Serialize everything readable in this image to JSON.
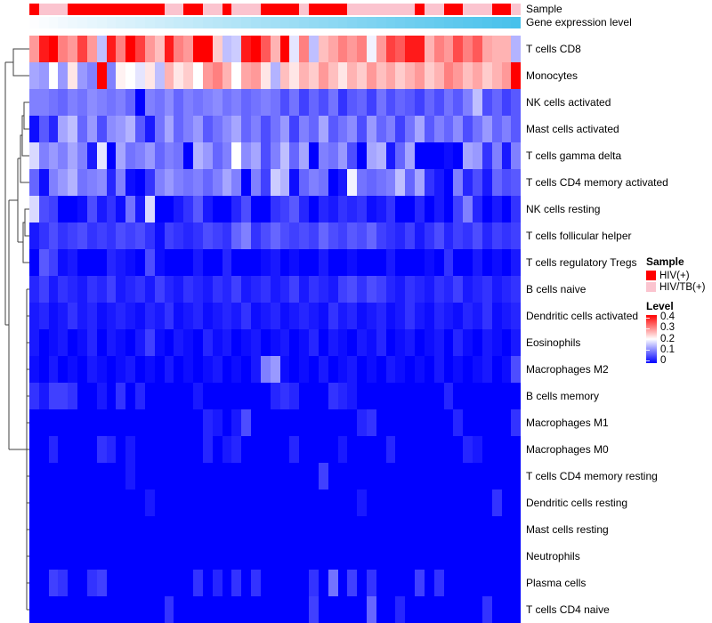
{
  "annotations": {
    "sample_label": "Sample",
    "gene_label": "Gene expression level",
    "sample_groups": "RPPPRRRRRRRRRRPPRRPPRPPPRRRRPRRRRPPPPPPPRPPRRPPPRRP",
    "sample_color_map": {
      "R": "#FF0000",
      "P": "#FBC4CF"
    },
    "gene_gradient": {
      "from": "#FDFDFF",
      "to": "#47C1EB",
      "direction": "low-left to high-right"
    }
  },
  "legend": {
    "sample": {
      "title": "Sample",
      "items": [
        {
          "label": "HIV(+)",
          "color": "#FF0000"
        },
        {
          "label": "HIV/TB(+)",
          "color": "#FBC4CF"
        }
      ]
    },
    "level": {
      "title": "Level",
      "ticks": [
        "0.4",
        "0.3",
        "0.2",
        "0.1",
        "0"
      ]
    }
  },
  "chart_data": {
    "type": "heatmap",
    "title": "",
    "n_cols": 51,
    "column_labels_shown": false,
    "row_dendrogram": true,
    "color_scale": {
      "min": 0,
      "mid": 0.2,
      "max": 0.4,
      "min_color": "#0000FF",
      "mid_color": "#FFFFFF",
      "max_color": "#FF0000"
    },
    "column_annotations": [
      "Sample",
      "Gene expression level"
    ],
    "rows": [
      "T cells CD8",
      "Monocytes",
      "NK cells activated",
      "Mast cells activated",
      "T cells gamma delta",
      "T cells CD4 memory activated",
      "NK cells resting",
      "T cells follicular helper",
      "T cells regulatory  Tregs",
      "B cells naive",
      "Dendritic cells activated",
      "Eosinophils",
      "Macrophages M2",
      "B cells memory",
      "Macrophages M1",
      "Macrophages M0",
      "T cells CD4 memory resting",
      "Dendritic cells resting",
      "Mast cells resting",
      "Neutrophils",
      "Plasma cells",
      "T cells CD4 naive"
    ],
    "values": [
      [
        0.28,
        0.38,
        0.4,
        0.3,
        0.28,
        0.35,
        0.28,
        0.15,
        0.38,
        0.3,
        0.4,
        0.35,
        0.28,
        0.25,
        0.38,
        0.3,
        0.28,
        0.4,
        0.4,
        0.24,
        0.15,
        0.16,
        0.38,
        0.4,
        0.33,
        0.26,
        0.4,
        0.18,
        0.3,
        0.15,
        0.25,
        0.27,
        0.3,
        0.28,
        0.3,
        0.19,
        0.28,
        0.35,
        0.33,
        0.38,
        0.38,
        0.26,
        0.3,
        0.28,
        0.34,
        0.3,
        0.33,
        0.27,
        0.26,
        0.26,
        0.14
      ],
      [
        0.13,
        0.12,
        0.2,
        0.12,
        0.22,
        0.12,
        0.1,
        0.4,
        0.1,
        0.21,
        0.2,
        0.18,
        0.22,
        0.15,
        0.26,
        0.22,
        0.24,
        0.2,
        0.28,
        0.3,
        0.26,
        0.2,
        0.27,
        0.28,
        0.22,
        0.14,
        0.25,
        0.22,
        0.26,
        0.24,
        0.28,
        0.25,
        0.22,
        0.26,
        0.24,
        0.28,
        0.25,
        0.27,
        0.24,
        0.26,
        0.28,
        0.24,
        0.26,
        0.3,
        0.28,
        0.25,
        0.27,
        0.24,
        0.26,
        0.28,
        0.4
      ],
      [
        0.1,
        0.1,
        0.09,
        0.08,
        0.1,
        0.09,
        0.11,
        0.1,
        0.09,
        0.1,
        0.08,
        0.0,
        0.1,
        0.09,
        0.11,
        0.08,
        0.1,
        0.09,
        0.1,
        0.11,
        0.09,
        0.1,
        0.08,
        0.09,
        0.1,
        0.09,
        0.06,
        0.09,
        0.05,
        0.08,
        0.06,
        0.09,
        0.04,
        0.07,
        0.08,
        0.05,
        0.09,
        0.06,
        0.08,
        0.07,
        0.05,
        0.08,
        0.06,
        0.09,
        0.07,
        0.1,
        0.15,
        0.06,
        0.08,
        0.05,
        0.07
      ],
      [
        0.01,
        0.07,
        0.03,
        0.13,
        0.15,
        0.08,
        0.12,
        0.06,
        0.11,
        0.12,
        0.14,
        0.07,
        0.02,
        0.09,
        0.13,
        0.08,
        0.1,
        0.12,
        0.07,
        0.09,
        0.11,
        0.13,
        0.08,
        0.1,
        0.06,
        0.09,
        0.12,
        0.05,
        0.1,
        0.08,
        0.13,
        0.07,
        0.09,
        0.11,
        0.06,
        0.12,
        0.08,
        0.1,
        0.05,
        0.09,
        0.13,
        0.07,
        0.1,
        0.08,
        0.11,
        0.06,
        0.09,
        0.12,
        0.08,
        0.1,
        0.07
      ],
      [
        0.17,
        0.1,
        0.12,
        0.1,
        0.13,
        0.1,
        0.02,
        0.18,
        0.0,
        0.13,
        0.09,
        0.1,
        0.12,
        0.08,
        0.1,
        0.09,
        0.0,
        0.14,
        0.12,
        0.08,
        0.1,
        0.2,
        0.11,
        0.13,
        0.06,
        0.1,
        0.15,
        0.08,
        0.13,
        0.0,
        0.1,
        0.09,
        0.12,
        0.06,
        0.0,
        0.13,
        0.14,
        0.02,
        0.08,
        0.13,
        0.0,
        0.0,
        0.0,
        0.01,
        0.0,
        0.13,
        0.12,
        0.04,
        0.1,
        0.02,
        0.1
      ],
      [
        0.08,
        0.01,
        0.1,
        0.12,
        0.14,
        0.09,
        0.1,
        0.11,
        0.03,
        0.1,
        0.01,
        0.0,
        0.04,
        0.1,
        0.12,
        0.1,
        0.09,
        0.1,
        0.08,
        0.1,
        0.13,
        0.1,
        0.0,
        0.1,
        0.05,
        0.16,
        0.14,
        0.01,
        0.08,
        0.1,
        0.09,
        0.0,
        0.02,
        0.19,
        0.09,
        0.08,
        0.09,
        0.1,
        0.15,
        0.08,
        0.13,
        0.04,
        0.02,
        0.0,
        0.1,
        0.03,
        0.06,
        0.02,
        0.08,
        0.06,
        0.07
      ],
      [
        0.17,
        0.06,
        0.05,
        0.0,
        0.0,
        0.01,
        0.06,
        0.02,
        0.04,
        0.01,
        0.09,
        0.02,
        0.17,
        0.0,
        0.0,
        0.02,
        0.04,
        0.07,
        0.02,
        0.0,
        0.0,
        0.03,
        0.06,
        0.0,
        0.0,
        0.04,
        0.05,
        0.07,
        0.03,
        0.0,
        0.03,
        0.02,
        0.04,
        0.03,
        0.04,
        0.01,
        0.02,
        0.04,
        0.0,
        0.0,
        0.03,
        0.0,
        0.02,
        0.0,
        0.05,
        0.1,
        0.03,
        0.0,
        0.02,
        0.0,
        0.04
      ],
      [
        0.02,
        0.04,
        0.06,
        0.04,
        0.05,
        0.06,
        0.04,
        0.05,
        0.04,
        0.06,
        0.05,
        0.06,
        0.04,
        0.01,
        0.05,
        0.04,
        0.03,
        0.04,
        0.06,
        0.05,
        0.04,
        0.08,
        0.1,
        0.04,
        0.06,
        0.08,
        0.06,
        0.05,
        0.06,
        0.05,
        0.08,
        0.06,
        0.05,
        0.07,
        0.06,
        0.08,
        0.05,
        0.04,
        0.03,
        0.05,
        0.02,
        0.04,
        0.06,
        0.03,
        0.05,
        0.04,
        0.06,
        0.03,
        0.05,
        0.04,
        0.05
      ],
      [
        0.0,
        0.07,
        0.05,
        0.01,
        0.02,
        0.0,
        0.0,
        0.0,
        0.03,
        0.02,
        0.01,
        0.0,
        0.06,
        0.01,
        0.0,
        0.0,
        0.0,
        0.02,
        0.0,
        0.0,
        0.03,
        0.0,
        0.0,
        0.0,
        0.01,
        0.02,
        0.0,
        0.01,
        0.0,
        0.0,
        0.02,
        0.0,
        0.0,
        0.01,
        0.0,
        0.0,
        0.0,
        0.02,
        0.0,
        0.0,
        0.0,
        0.01,
        0.0,
        0.04,
        0.0,
        0.0,
        0.02,
        0.0,
        0.01,
        0.0,
        0.02
      ],
      [
        0.03,
        0.05,
        0.02,
        0.04,
        0.03,
        0.02,
        0.04,
        0.03,
        0.05,
        0.02,
        0.03,
        0.04,
        0.02,
        0.05,
        0.03,
        0.02,
        0.04,
        0.03,
        0.02,
        0.04,
        0.03,
        0.05,
        0.02,
        0.03,
        0.04,
        0.02,
        0.03,
        0.05,
        0.02,
        0.04,
        0.03,
        0.02,
        0.05,
        0.06,
        0.04,
        0.06,
        0.05,
        0.03,
        0.02,
        0.04,
        0.03,
        0.02,
        0.04,
        0.03,
        0.05,
        0.02,
        0.03,
        0.04,
        0.02,
        0.03,
        0.04
      ],
      [
        0.02,
        0.03,
        0.01,
        0.02,
        0.04,
        0.02,
        0.03,
        0.01,
        0.02,
        0.03,
        0.02,
        0.01,
        0.03,
        0.02,
        0.04,
        0.01,
        0.02,
        0.03,
        0.01,
        0.02,
        0.03,
        0.02,
        0.04,
        0.01,
        0.02,
        0.03,
        0.01,
        0.02,
        0.03,
        0.02,
        0.01,
        0.04,
        0.02,
        0.03,
        0.01,
        0.02,
        0.03,
        0.01,
        0.02,
        0.04,
        0.02,
        0.01,
        0.03,
        0.02,
        0.01,
        0.03,
        0.02,
        0.04,
        0.01,
        0.02,
        0.03
      ],
      [
        0.02,
        0.0,
        0.01,
        0.02,
        0.0,
        0.01,
        0.03,
        0.0,
        0.02,
        0.01,
        0.0,
        0.02,
        0.05,
        0.01,
        0.0,
        0.02,
        0.01,
        0.0,
        0.03,
        0.01,
        0.02,
        0.0,
        0.01,
        0.02,
        0.0,
        0.01,
        0.02,
        0.0,
        0.01,
        0.03,
        0.0,
        0.02,
        0.01,
        0.0,
        0.02,
        0.01,
        0.03,
        0.0,
        0.01,
        0.02,
        0.0,
        0.01,
        0.02,
        0.0,
        0.03,
        0.01,
        0.0,
        0.02,
        0.01,
        0.0,
        0.02
      ],
      [
        0.01,
        0.0,
        0.02,
        0.0,
        0.01,
        0.0,
        0.02,
        0.01,
        0.0,
        0.01,
        0.02,
        0.0,
        0.01,
        0.0,
        0.02,
        0.0,
        0.01,
        0.0,
        0.01,
        0.02,
        0.0,
        0.01,
        0.0,
        0.02,
        0.1,
        0.12,
        0.01,
        0.0,
        0.01,
        0.0,
        0.02,
        0.0,
        0.01,
        0.02,
        0.0,
        0.01,
        0.0,
        0.02,
        0.01,
        0.0,
        0.01,
        0.0,
        0.02,
        0.0,
        0.01,
        0.0,
        0.01,
        0.02,
        0.0,
        0.01,
        0.06
      ],
      [
        0.04,
        0.02,
        0.05,
        0.05,
        0.04,
        0.0,
        0.0,
        0.02,
        0.0,
        0.04,
        0.0,
        0.03,
        0.0,
        0.0,
        0.0,
        0.0,
        0.0,
        0.02,
        0.0,
        0.0,
        0.0,
        0.0,
        0.0,
        0.0,
        0.0,
        0.03,
        0.04,
        0.03,
        0.0,
        0.0,
        0.0,
        0.04,
        0.03,
        0.02,
        0.0,
        0.0,
        0.0,
        0.0,
        0.0,
        0.0,
        0.0,
        0.0,
        0.0,
        0.03,
        0.0,
        0.0,
        0.0,
        0.0,
        0.0,
        0.0,
        0.0
      ],
      [
        0.0,
        0.0,
        0.0,
        0.0,
        0.0,
        0.0,
        0.0,
        0.0,
        0.0,
        0.0,
        0.0,
        0.0,
        0.0,
        0.0,
        0.0,
        0.0,
        0.0,
        0.0,
        0.03,
        0.02,
        0.0,
        0.02,
        0.06,
        0.0,
        0.0,
        0.0,
        0.0,
        0.0,
        0.0,
        0.0,
        0.0,
        0.0,
        0.0,
        0.0,
        0.03,
        0.04,
        0.0,
        0.0,
        0.0,
        0.0,
        0.0,
        0.0,
        0.0,
        0.0,
        0.03,
        0.0,
        0.0,
        0.0,
        0.0,
        0.0,
        0.04
      ],
      [
        0.0,
        0.0,
        0.03,
        0.0,
        0.0,
        0.0,
        0.0,
        0.04,
        0.03,
        0.0,
        0.02,
        0.0,
        0.0,
        0.0,
        0.0,
        0.0,
        0.0,
        0.0,
        0.03,
        0.0,
        0.02,
        0.03,
        0.0,
        0.0,
        0.0,
        0.0,
        0.0,
        0.03,
        0.0,
        0.0,
        0.0,
        0.0,
        0.02,
        0.0,
        0.0,
        0.0,
        0.0,
        0.03,
        0.0,
        0.0,
        0.0,
        0.0,
        0.0,
        0.0,
        0.0,
        0.03,
        0.02,
        0.0,
        0.0,
        0.0,
        0.0
      ],
      [
        0.0,
        0.0,
        0.0,
        0.0,
        0.0,
        0.0,
        0.0,
        0.0,
        0.0,
        0.0,
        0.02,
        0.0,
        0.0,
        0.0,
        0.0,
        0.0,
        0.0,
        0.0,
        0.0,
        0.0,
        0.0,
        0.0,
        0.0,
        0.0,
        0.0,
        0.0,
        0.0,
        0.0,
        0.0,
        0.0,
        0.05,
        0.0,
        0.0,
        0.0,
        0.0,
        0.0,
        0.0,
        0.0,
        0.0,
        0.0,
        0.0,
        0.0,
        0.0,
        0.0,
        0.0,
        0.0,
        0.0,
        0.0,
        0.0,
        0.0,
        0.0
      ],
      [
        0.0,
        0.0,
        0.0,
        0.0,
        0.0,
        0.0,
        0.0,
        0.0,
        0.0,
        0.0,
        0.0,
        0.0,
        0.02,
        0.0,
        0.0,
        0.0,
        0.0,
        0.0,
        0.0,
        0.0,
        0.0,
        0.0,
        0.0,
        0.0,
        0.0,
        0.0,
        0.0,
        0.0,
        0.0,
        0.0,
        0.0,
        0.0,
        0.0,
        0.0,
        0.02,
        0.0,
        0.0,
        0.0,
        0.0,
        0.0,
        0.0,
        0.0,
        0.0,
        0.0,
        0.0,
        0.0,
        0.0,
        0.0,
        0.04,
        0.0,
        0.0
      ],
      [
        0.0,
        0.0,
        0.0,
        0.0,
        0.0,
        0.0,
        0.0,
        0.0,
        0.0,
        0.0,
        0.0,
        0.0,
        0.0,
        0.0,
        0.0,
        0.0,
        0.0,
        0.0,
        0.0,
        0.0,
        0.0,
        0.0,
        0.0,
        0.0,
        0.0,
        0.0,
        0.0,
        0.0,
        0.0,
        0.0,
        0.0,
        0.0,
        0.0,
        0.0,
        0.0,
        0.0,
        0.0,
        0.0,
        0.0,
        0.0,
        0.0,
        0.0,
        0.0,
        0.0,
        0.0,
        0.0,
        0.0,
        0.0,
        0.0,
        0.0,
        0.0
      ],
      [
        0.0,
        0.0,
        0.0,
        0.0,
        0.0,
        0.0,
        0.0,
        0.0,
        0.0,
        0.0,
        0.0,
        0.0,
        0.0,
        0.0,
        0.0,
        0.0,
        0.0,
        0.0,
        0.0,
        0.0,
        0.0,
        0.0,
        0.0,
        0.0,
        0.0,
        0.0,
        0.0,
        0.0,
        0.0,
        0.0,
        0.0,
        0.0,
        0.0,
        0.0,
        0.0,
        0.0,
        0.0,
        0.0,
        0.0,
        0.0,
        0.0,
        0.0,
        0.0,
        0.0,
        0.0,
        0.0,
        0.0,
        0.0,
        0.0,
        0.0,
        0.0
      ],
      [
        0.0,
        0.0,
        0.05,
        0.04,
        0.0,
        0.0,
        0.04,
        0.05,
        0.0,
        0.0,
        0.0,
        0.0,
        0.0,
        0.0,
        0.0,
        0.0,
        0.0,
        0.04,
        0.0,
        0.03,
        0.0,
        0.04,
        0.0,
        0.04,
        0.0,
        0.0,
        0.0,
        0.0,
        0.0,
        0.04,
        0.0,
        0.09,
        0.0,
        0.05,
        0.0,
        0.04,
        0.0,
        0.0,
        0.0,
        0.0,
        0.05,
        0.0,
        0.04,
        0.0,
        0.0,
        0.0,
        0.0,
        0.0,
        0.0,
        0.0,
        0.0
      ],
      [
        0.0,
        0.0,
        0.0,
        0.0,
        0.0,
        0.0,
        0.0,
        0.0,
        0.0,
        0.0,
        0.0,
        0.0,
        0.0,
        0.0,
        0.04,
        0.0,
        0.0,
        0.0,
        0.0,
        0.0,
        0.0,
        0.0,
        0.0,
        0.0,
        0.0,
        0.0,
        0.0,
        0.0,
        0.0,
        0.05,
        0.0,
        0.0,
        0.0,
        0.0,
        0.0,
        0.08,
        0.0,
        0.0,
        0.03,
        0.0,
        0.0,
        0.0,
        0.0,
        0.0,
        0.0,
        0.0,
        0.0,
        0.04,
        0.0,
        0.0,
        0.0
      ]
    ]
  }
}
